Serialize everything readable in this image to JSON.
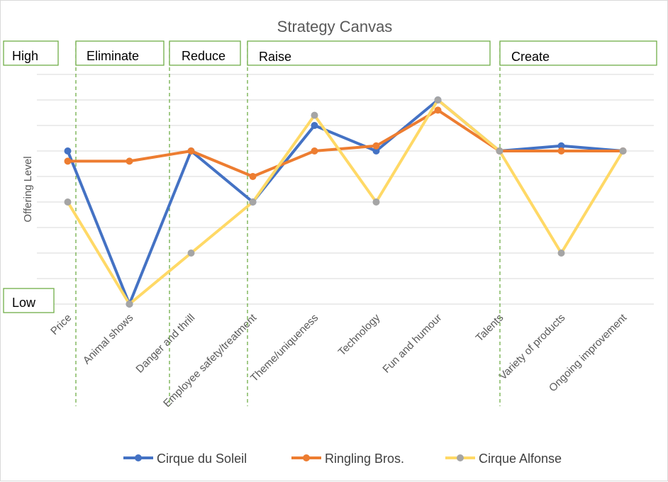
{
  "chart_data": {
    "type": "line",
    "title": "Strategy Canvas",
    "ylabel": "Offering Level",
    "ylim": [
      0,
      9
    ],
    "grid": true,
    "legend_position": "bottom",
    "categories": [
      "Price",
      "Animal shows",
      "Danger and thrill",
      "Employee safety/treatment",
      "Theme/uniqueness",
      "Technology",
      "Fun and humour",
      "Talents",
      "Variety of products",
      "Ongoing improvement"
    ],
    "series": [
      {
        "name": "Cirque du Soleil",
        "color": "#4472c4",
        "values": [
          6,
          0,
          6,
          4,
          7,
          6,
          8,
          6,
          6.2,
          6
        ]
      },
      {
        "name": "Ringling Bros.",
        "color": "#ed7d31",
        "values": [
          5.6,
          5.6,
          6,
          5,
          6,
          6.2,
          7.6,
          6,
          6,
          6
        ]
      },
      {
        "name": "Cirque Alfonse",
        "color": "#ffd966",
        "marker_color": "#a5a5a5",
        "values": [
          4,
          0,
          2,
          4,
          7.4,
          4,
          8,
          6,
          2,
          6
        ]
      }
    ],
    "annotations": {
      "level_labels": [
        "High",
        "Low"
      ],
      "section_labels": [
        "Eliminate",
        "Reduce",
        "Raise",
        "Create"
      ],
      "box_color": "#70ad47",
      "divider_color": "#70ad47"
    }
  }
}
